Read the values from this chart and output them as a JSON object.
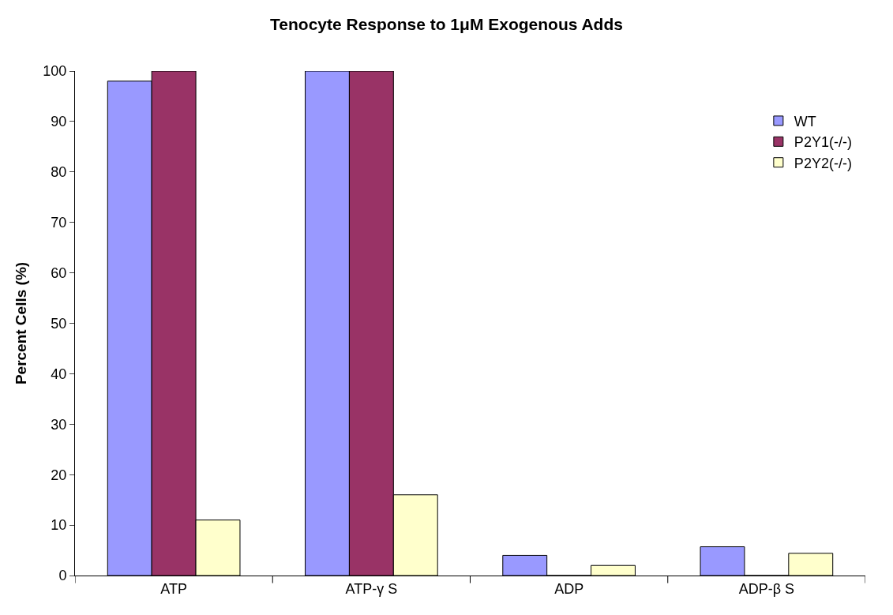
{
  "chart_data": {
    "type": "bar",
    "title": "Tenocyte Response to 1μM Exogenous Adds",
    "ylabel": "Percent Cells (%)",
    "categories": [
      "ATP",
      "ATP-γ S",
      "ADP",
      "ADP-β S"
    ],
    "series": [
      {
        "name": "WT",
        "color": "#9999ff",
        "values": [
          98,
          100,
          4,
          5.7
        ]
      },
      {
        "name": "P2Y1(-/-)",
        "color": "#993366",
        "values": [
          100,
          100,
          0,
          0
        ]
      },
      {
        "name": "P2Y2(-/-)",
        "color": "#ffffcc",
        "values": [
          11,
          16,
          2,
          4.4
        ]
      }
    ],
    "ylim": [
      0,
      100
    ],
    "yticks": [
      0,
      10,
      20,
      30,
      40,
      50,
      60,
      70,
      80,
      90,
      100
    ],
    "legend": "top right"
  }
}
